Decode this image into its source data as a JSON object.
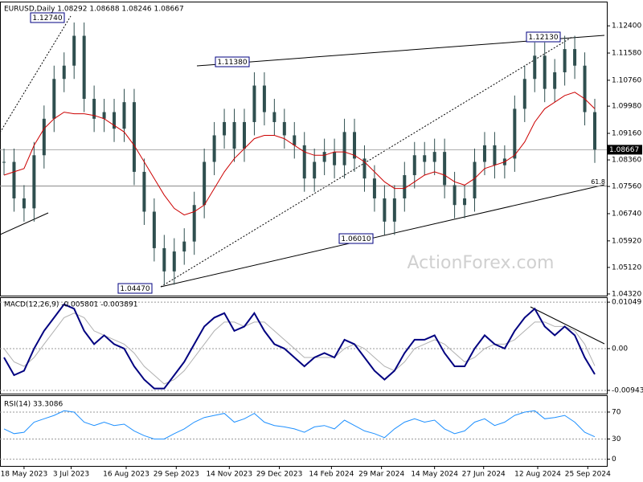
{
  "chart_data": [
    {
      "type": "candlestick",
      "title": "EURUSD,Daily  1.08292 1.08688 1.08246 1.08667",
      "color": "#2f4f4f",
      "values": [
        1.083,
        1.072,
        1.069,
        1.085,
        1.096,
        1.108,
        1.112,
        1.121,
        1.102,
        1.096,
        1.098,
        1.093,
        1.101,
        1.08,
        1.068,
        1.057,
        1.05,
        1.056,
        1.059,
        1.07,
        1.083,
        1.091,
        1.095,
        1.087,
        1.095,
        1.106,
        1.098,
        1.095,
        1.091,
        1.088,
        1.078,
        1.083,
        1.086,
        1.082,
        1.092,
        1.084,
        1.078,
        1.072,
        1.065,
        1.072,
        1.079,
        1.085,
        1.083,
        1.086,
        1.076,
        1.07,
        1.072,
        1.083,
        1.088,
        1.082,
        1.084,
        1.099,
        1.108,
        1.115,
        1.105,
        1.11,
        1.117,
        1.112,
        1.098,
        1.0867
      ],
      "ma_color": "#cc0000",
      "ma_values": [
        1.079,
        1.08,
        1.081,
        1.088,
        1.093,
        1.096,
        1.098,
        1.0975,
        1.0975,
        1.097,
        1.096,
        1.094,
        1.092,
        1.088,
        1.083,
        1.078,
        1.073,
        1.069,
        1.067,
        1.068,
        1.07,
        1.075,
        1.08,
        1.084,
        1.087,
        1.09,
        1.091,
        1.091,
        1.09,
        1.088,
        1.086,
        1.085,
        1.085,
        1.086,
        1.086,
        1.085,
        1.083,
        1.08,
        1.077,
        1.075,
        1.075,
        1.077,
        1.079,
        1.08,
        1.079,
        1.077,
        1.076,
        1.078,
        1.081,
        1.082,
        1.083,
        1.085,
        1.089,
        1.095,
        1.099,
        1.101,
        1.103,
        1.104,
        1.102,
        1.099
      ],
      "xlim": [
        0,
        59
      ],
      "ylim": [
        1.0427,
        1.1313
      ],
      "yticks": [
        {
          "value": 1.124,
          "label": "1.12400"
        },
        {
          "value": 1.1158,
          "label": "1.11580"
        },
        {
          "value": 1.1076,
          "label": "1.10760"
        },
        {
          "value": 1.0998,
          "label": "1.09980"
        },
        {
          "value": 1.0916,
          "label": "1.09160"
        },
        {
          "value": 1.0836,
          "label": "1.08360"
        },
        {
          "value": 1.0756,
          "label": "1.07560"
        },
        {
          "value": 1.0674,
          "label": "1.06740"
        },
        {
          "value": 1.0592,
          "label": "1.05920"
        },
        {
          "value": 1.0512,
          "label": "1.05120"
        },
        {
          "value": 1.0432,
          "label": "1.04320"
        }
      ],
      "last_price": 1.08667,
      "fib_level": {
        "value": 1.0757,
        "label": "61.8"
      },
      "annotations": [
        "1.12740",
        "1.11380",
        "1.12130",
        "1.06010",
        "1.04470"
      ],
      "watermark": "ActionForex.com"
    },
    {
      "type": "line",
      "title": "MACD(12,26,9) -0.005801 -0.003891",
      "series": [
        {
          "color": "#000080",
          "values": [
            -0.002,
            -0.006,
            -0.005,
            0.0,
            0.004,
            0.007,
            0.01,
            0.009,
            0.004,
            0.001,
            0.003,
            0.001,
            0.0,
            -0.004,
            -0.007,
            -0.009,
            -0.009,
            -0.006,
            -0.003,
            0.001,
            0.005,
            0.007,
            0.008,
            0.004,
            0.005,
            0.008,
            0.004,
            0.001,
            0.0,
            -0.002,
            -0.004,
            -0.002,
            -0.001,
            -0.002,
            0.002,
            0.001,
            -0.002,
            -0.005,
            -0.007,
            -0.005,
            -0.001,
            0.002,
            0.002,
            0.003,
            -0.001,
            -0.004,
            -0.004,
            0.0,
            0.003,
            0.001,
            0.0,
            0.004,
            0.007,
            0.009,
            0.005,
            0.003,
            0.005,
            0.003,
            -0.002,
            -0.005801
          ]
        },
        {
          "color": "#b0b0b0",
          "values": [
            0.0,
            -0.003,
            -0.004,
            -0.002,
            0.001,
            0.004,
            0.007,
            0.008,
            0.007,
            0.004,
            0.003,
            0.002,
            0.001,
            -0.001,
            -0.004,
            -0.006,
            -0.008,
            -0.007,
            -0.005,
            -0.002,
            0.001,
            0.004,
            0.006,
            0.006,
            0.005,
            0.006,
            0.006,
            0.004,
            0.002,
            0.0,
            -0.002,
            -0.002,
            -0.002,
            -0.002,
            0.0,
            0.001,
            0.0,
            -0.002,
            -0.004,
            -0.005,
            -0.003,
            0.0,
            0.001,
            0.002,
            0.001,
            -0.001,
            -0.003,
            -0.002,
            0.0,
            0.001,
            0.001,
            0.002,
            0.004,
            0.006,
            0.006,
            0.005,
            0.005,
            0.004,
            0.001,
            -0.003891
          ]
        }
      ],
      "xlim": [
        0,
        59
      ],
      "ylim": [
        -0.01017,
        0.0116
      ],
      "yticks": [
        0.01049,
        {
          "value": 0,
          "label": "0.00"
        },
        -0.009435
      ]
    },
    {
      "type": "line",
      "title": "RSI(14) 33.3086",
      "series": [
        {
          "color": "#1e90ff",
          "values": [
            45,
            38,
            40,
            55,
            60,
            65,
            72,
            70,
            55,
            50,
            55,
            50,
            52,
            42,
            35,
            30,
            30,
            38,
            45,
            55,
            62,
            65,
            68,
            55,
            60,
            68,
            55,
            50,
            48,
            45,
            40,
            48,
            50,
            45,
            58,
            50,
            42,
            38,
            32,
            45,
            55,
            60,
            55,
            58,
            45,
            38,
            42,
            55,
            60,
            50,
            55,
            65,
            70,
            72,
            60,
            62,
            65,
            55,
            40,
            33.3086
          ]
        }
      ],
      "xlim": [
        0,
        59
      ],
      "ylim": [
        -10,
        95
      ],
      "yticks": [
        70,
        30,
        0
      ],
      "xticks": [
        {
          "value": 2.0,
          "label": "18 May 2023"
        },
        {
          "value": 6.7,
          "label": "3 Jul 2023"
        },
        {
          "value": 12.2,
          "label": "16 Aug 2023"
        },
        {
          "value": 17.2,
          "label": "29 Sep 2023"
        },
        {
          "value": 22.5,
          "label": "14 Nov 2023"
        },
        {
          "value": 27.5,
          "label": "29 Dec 2023"
        },
        {
          "value": 32.7,
          "label": "14 Feb 2024"
        },
        {
          "value": 37.7,
          "label": "29 Mar 2024"
        },
        {
          "value": 43,
          "label": "14 May 2024"
        },
        {
          "value": 47.9,
          "label": "27 Jun 2024"
        },
        {
          "value": 53.3,
          "label": "12 Aug 2024"
        },
        {
          "value": 58.3,
          "label": "25 Sep 2024"
        }
      ]
    }
  ]
}
